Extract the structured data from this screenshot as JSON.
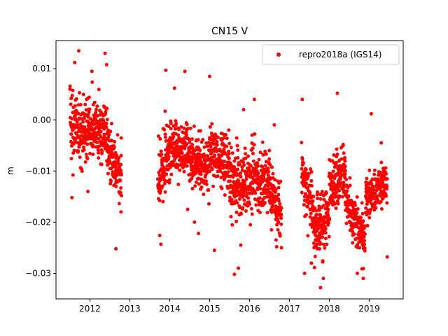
{
  "chart_data": {
    "type": "scatter",
    "title": "CN15 V",
    "xlabel": "",
    "ylabel": "m",
    "xlim": [
      2011.15,
      2019.85
    ],
    "ylim": [
      -0.035,
      0.0155
    ],
    "xticks": [
      2012,
      2013,
      2014,
      2015,
      2016,
      2017,
      2018,
      2019
    ],
    "yticks": [
      -0.03,
      -0.02,
      -0.01,
      0.0,
      0.01
    ],
    "ytick_labels": [
      "−0.03",
      "−0.02",
      "−0.01",
      "0.00",
      "0.01"
    ],
    "legend": {
      "placement": "top-right",
      "entries": [
        "repro2018a (IGS14)"
      ]
    },
    "grid": false,
    "series": [
      {
        "name": "repro2018a (IGS14)",
        "color": "#ff0000",
        "marker": "circle",
        "segments": [
          {
            "start": 2011.5,
            "end": 2011.95,
            "trend": [
              -0.001,
              -0.003
            ],
            "noise": 0.0055
          },
          {
            "start": 2011.95,
            "end": 2012.45,
            "trend": [
              -0.001,
              -0.003
            ],
            "noise": 0.0045
          },
          {
            "start": 2012.45,
            "end": 2012.8,
            "trend": [
              -0.006,
              -0.011
            ],
            "noise": 0.004
          },
          {
            "start": 2013.7,
            "end": 2014.0,
            "trend": [
              -0.013,
              -0.005
            ],
            "noise": 0.005
          },
          {
            "start": 2014.0,
            "end": 2014.5,
            "trend": [
              -0.005,
              -0.006
            ],
            "noise": 0.004
          },
          {
            "start": 2014.5,
            "end": 2015.0,
            "trend": [
              -0.008,
              -0.009
            ],
            "noise": 0.0045
          },
          {
            "start": 2015.0,
            "end": 2015.5,
            "trend": [
              -0.006,
              -0.009
            ],
            "noise": 0.0045
          },
          {
            "start": 2015.5,
            "end": 2016.0,
            "trend": [
              -0.013,
              -0.012
            ],
            "noise": 0.005
          },
          {
            "start": 2016.0,
            "end": 2016.5,
            "trend": [
              -0.011,
              -0.012
            ],
            "noise": 0.005
          },
          {
            "start": 2016.5,
            "end": 2016.8,
            "trend": [
              -0.013,
              -0.019
            ],
            "noise": 0.0045
          },
          {
            "start": 2017.3,
            "end": 2017.6,
            "trend": [
              -0.01,
              -0.018
            ],
            "noise": 0.0045
          },
          {
            "start": 2017.6,
            "end": 2018.0,
            "trend": [
              -0.022,
              -0.019
            ],
            "noise": 0.005
          },
          {
            "start": 2018.0,
            "end": 2018.4,
            "trend": [
              -0.012,
              -0.011
            ],
            "noise": 0.004
          },
          {
            "start": 2018.4,
            "end": 2018.9,
            "trend": [
              -0.015,
              -0.024
            ],
            "noise": 0.004
          },
          {
            "start": 2018.9,
            "end": 2019.45,
            "trend": [
              -0.016,
              -0.012
            ],
            "noise": 0.0035
          }
        ],
        "points": [
          [
            2011.72,
            0.0135
          ],
          [
            2012.38,
            0.013
          ],
          [
            2012.42,
            0.0108
          ],
          [
            2011.62,
            0.0112
          ],
          [
            2011.55,
            -0.0152
          ],
          [
            2011.95,
            -0.014
          ],
          [
            2012.65,
            -0.0252
          ],
          [
            2012.78,
            -0.018
          ],
          [
            2013.9,
            0.0097
          ],
          [
            2014.38,
            0.0095
          ],
          [
            2015.0,
            0.0085
          ],
          [
            2014.12,
            0.0062
          ],
          [
            2013.78,
            -0.0243
          ],
          [
            2013.75,
            -0.0226
          ],
          [
            2014.45,
            -0.0175
          ],
          [
            2014.62,
            -0.02
          ],
          [
            2014.72,
            -0.0222
          ],
          [
            2015.12,
            -0.0255
          ],
          [
            2015.62,
            -0.0302
          ],
          [
            2015.72,
            -0.029
          ],
          [
            2015.78,
            -0.0245
          ],
          [
            2016.02,
            -0.0205
          ],
          [
            2016.55,
            -0.0215
          ],
          [
            2016.68,
            -0.0248
          ],
          [
            2016.8,
            -0.025
          ],
          [
            2015.85,
            0.002
          ],
          [
            2016.12,
            0.004
          ],
          [
            2016.62,
            -0.001
          ],
          [
            2017.32,
            0.004
          ],
          [
            2017.38,
            -0.03
          ],
          [
            2017.55,
            -0.028
          ],
          [
            2017.78,
            -0.0328
          ],
          [
            2017.85,
            -0.031
          ],
          [
            2018.2,
            0.0052
          ],
          [
            2018.7,
            -0.03
          ],
          [
            2018.85,
            -0.031
          ],
          [
            2019.05,
            0.0012
          ],
          [
            2019.45,
            -0.0268
          ],
          [
            2019.3,
            -0.0045
          ],
          [
            2012.05,
            0.0095
          ]
        ]
      }
    ]
  }
}
